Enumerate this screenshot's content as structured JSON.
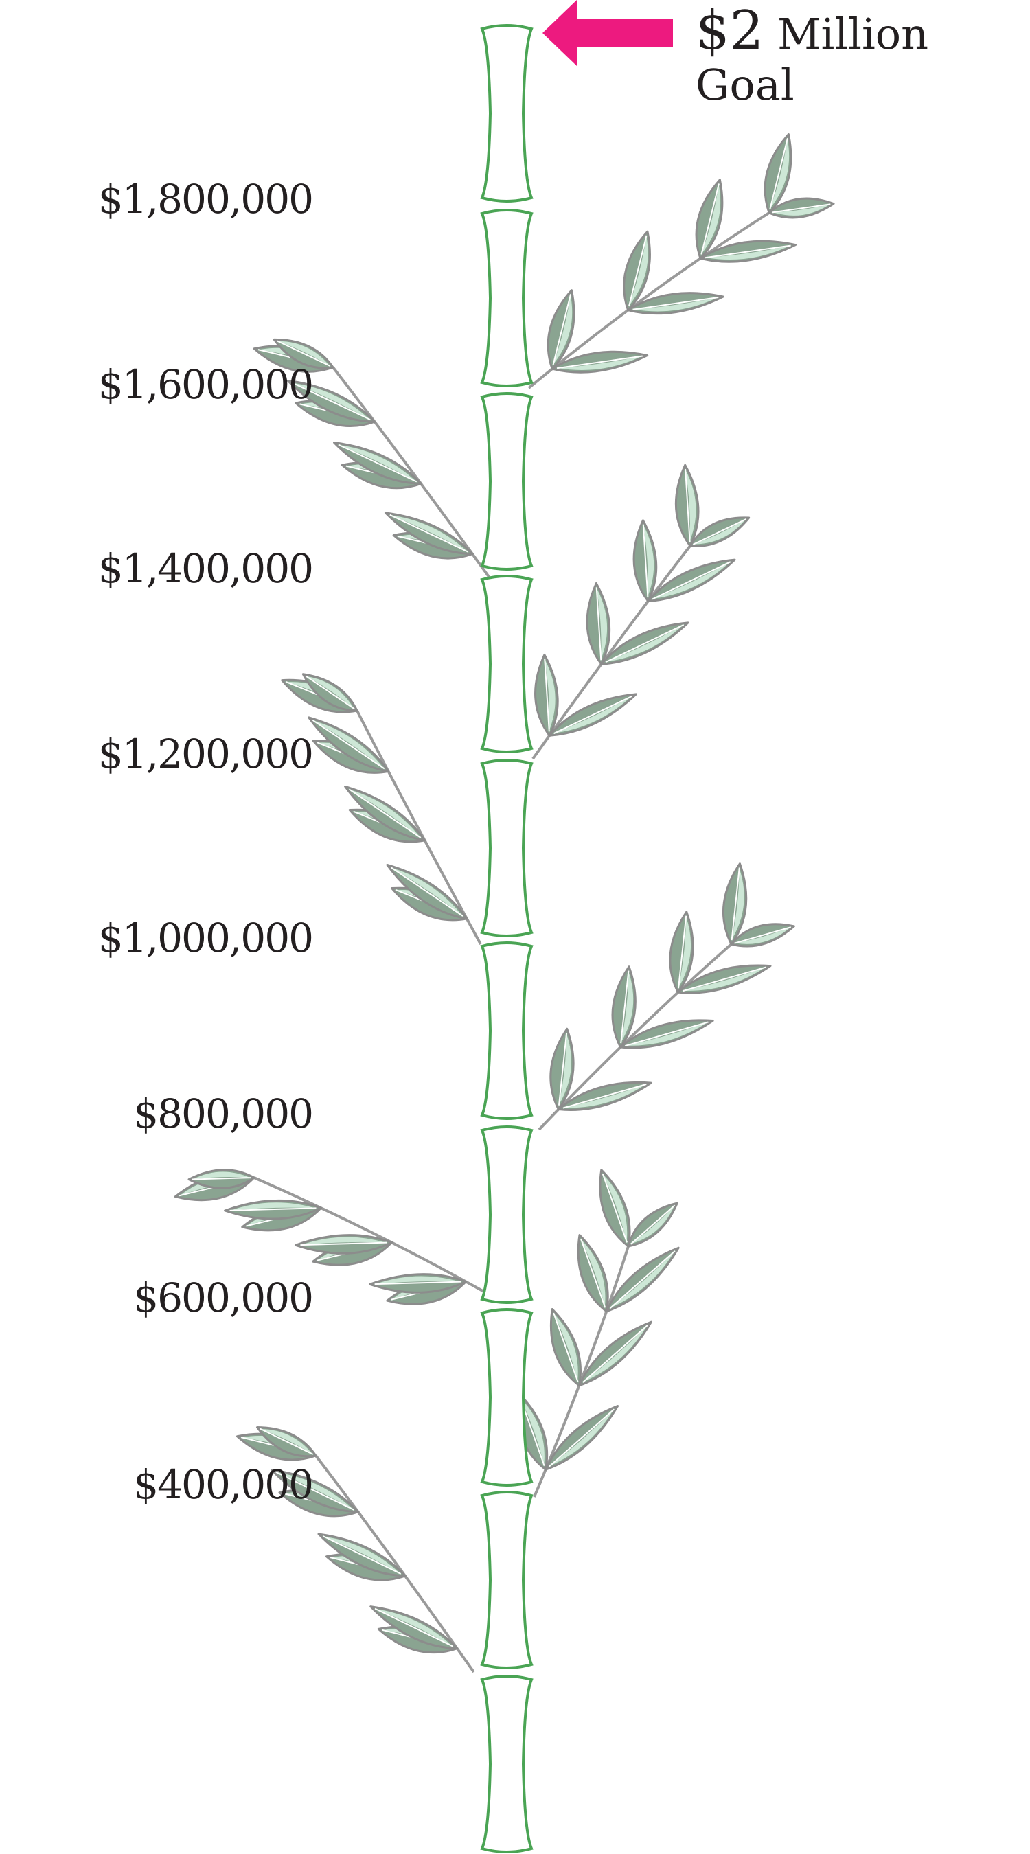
{
  "goal": {
    "amount_text": "$2",
    "word_text": "Million",
    "line2_text": "Goal",
    "arrow_color": "#ed1a7f",
    "value": 2000000
  },
  "scale": {
    "labels": [
      {
        "text": "$1,800,000",
        "value": 1800000
      },
      {
        "text": "$1,600,000",
        "value": 1600000
      },
      {
        "text": "$1,400,000",
        "value": 1400000
      },
      {
        "text": "$1,200,000",
        "value": 1200000
      },
      {
        "text": "$1,000,000",
        "value": 1000000
      },
      {
        "text": "$800,000",
        "value": 800000
      },
      {
        "text": "$600,000",
        "value": 600000
      },
      {
        "text": "$400,000",
        "value": 400000
      }
    ]
  },
  "bamboo": {
    "stalk_color": "#4aa454",
    "leaf_dark": "#8aa491",
    "leaf_light": "#cde7d6",
    "leaf_outline": "#8c8c8c",
    "branch_color": "#9a9a9a",
    "icon": "bamboo-stalk-icon"
  }
}
